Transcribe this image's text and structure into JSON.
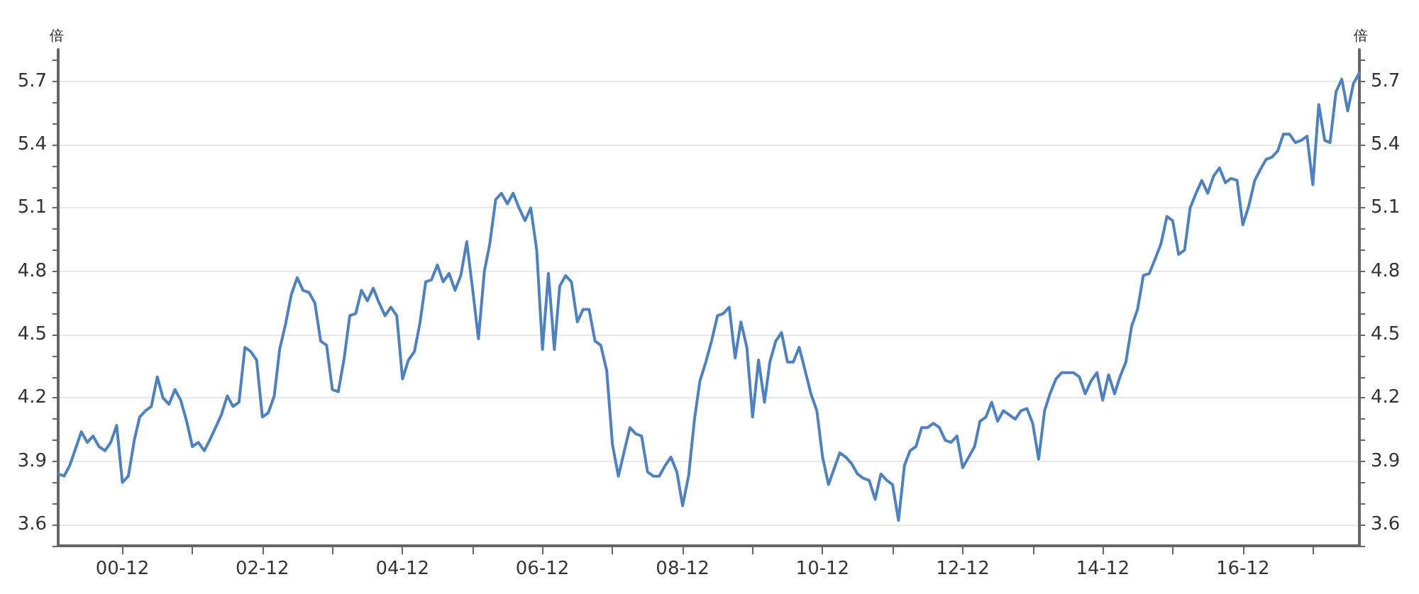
{
  "chart_data": {
    "type": "line",
    "ylabel": "倍",
    "y2label": "倍",
    "x": [
      "2000-01",
      "2000-02",
      "2000-03",
      "2000-05",
      "2000-06",
      "2000-07",
      "2000-08",
      "2000-09",
      "2000-10",
      "2000-11",
      "2000-12",
      "2001-01",
      "2001-02",
      "2001-03",
      "2001-04",
      "2001-05",
      "2001-06",
      "2001-07",
      "2001-08",
      "2001-09",
      "2001-10",
      "2001-11",
      "2001-12",
      "2002-01",
      "2002-02",
      "2002-03",
      "2002-04",
      "2002-05",
      "2002-06",
      "2002-07",
      "2002-08",
      "2002-09",
      "2002-10",
      "2002-11",
      "2002-12",
      "2003-01",
      "2003-02",
      "2003-03",
      "2003-04",
      "2003-05",
      "2003-06",
      "2003-07",
      "2003-08",
      "2003-09",
      "2003-10",
      "2003-11",
      "2003-12",
      "2004-01",
      "2004-02",
      "2004-03",
      "2004-04",
      "2004-05",
      "2004-06",
      "2004-07",
      "2004-08",
      "2004-09",
      "2004-10",
      "2004-11",
      "2004-12",
      "2005-01",
      "2005-02",
      "2005-03",
      "2005-04",
      "2005-05",
      "2005-06",
      "2005-07",
      "2005-08",
      "2005-09",
      "2005-10",
      "2005-11",
      "2005-12",
      "2006-01",
      "2006-02",
      "2006-03",
      "2006-04",
      "2006-05",
      "2006-06",
      "2006-07",
      "2006-08",
      "2006-09",
      "2006-10",
      "2006-11",
      "2006-12",
      "2007-01",
      "2007-02",
      "2007-03",
      "2007-04",
      "2007-05",
      "2007-06",
      "2007-07",
      "2007-08",
      "2007-09",
      "2007-10",
      "2007-11",
      "2007-12",
      "2008-01",
      "2008-02",
      "2008-03",
      "2008-04",
      "2008-05",
      "2008-06",
      "2008-07",
      "2008-08",
      "2008-09",
      "2008-10",
      "2008-11",
      "2008-12",
      "2009-01",
      "2009-02",
      "2009-03",
      "2009-04",
      "2009-05",
      "2009-06",
      "2009-07",
      "2009-08",
      "2009-09",
      "2009-10",
      "2009-11",
      "2009-12",
      "2010-01",
      "2010-02",
      "2010-03",
      "2010-04",
      "2010-05",
      "2010-06",
      "2010-07",
      "2010-08",
      "2010-09",
      "2010-10",
      "2010-11",
      "2010-12",
      "2011-01",
      "2011-02",
      "2011-03",
      "2011-04",
      "2011-05",
      "2011-06",
      "2011-07",
      "2011-08",
      "2011-09",
      "2011-10",
      "2011-11",
      "2011-12",
      "2012-01",
      "2012-02",
      "2012-03",
      "2012-04",
      "2012-05",
      "2012-06",
      "2012-07",
      "2012-08",
      "2012-09",
      "2012-10",
      "2012-11",
      "2012-12",
      "2013-01",
      "2013-02",
      "2013-03",
      "2013-04",
      "2013-05",
      "2013-06",
      "2013-07",
      "2013-08",
      "2013-09",
      "2013-10",
      "2013-11",
      "2013-12",
      "2014-01",
      "2014-02",
      "2014-03",
      "2014-04",
      "2014-05",
      "2014-06",
      "2014-07",
      "2014-08",
      "2014-09",
      "2014-10",
      "2014-11",
      "2014-12",
      "2015-01",
      "2015-02",
      "2015-03",
      "2015-04",
      "2015-05",
      "2015-06",
      "2015-07",
      "2015-08",
      "2015-09",
      "2015-10",
      "2015-11",
      "2015-12",
      "2016-01",
      "2016-02",
      "2016-03",
      "2016-04",
      "2016-05",
      "2016-06",
      "2016-07",
      "2016-08",
      "2016-09",
      "2016-10",
      "2016-11",
      "2016-12",
      "2017-01",
      "2017-02",
      "2017-03",
      "2017-04",
      "2017-05",
      "2017-06",
      "2017-07",
      "2017-08",
      "2017-09",
      "2017-10",
      "2017-11",
      "2017-12",
      "2018-01",
      "2018-02",
      "2018-03",
      "2018-04",
      "2018-05",
      "2018-06",
      "2018-07",
      "2018-08"
    ],
    "series": [
      {
        "color": "#4f81bd",
        "values": [
          3.84,
          3.83,
          3.88,
          4.04,
          3.99,
          4.02,
          3.97,
          3.95,
          3.99,
          4.07,
          3.8,
          3.83,
          4.0,
          4.11,
          4.14,
          4.16,
          4.3,
          4.2,
          4.17,
          4.24,
          4.19,
          4.09,
          3.97,
          3.99,
          3.95,
          4.0,
          4.06,
          4.12,
          4.21,
          4.16,
          4.18,
          4.44,
          4.42,
          4.38,
          4.11,
          4.13,
          4.21,
          4.43,
          4.55,
          4.69,
          4.77,
          4.71,
          4.7,
          4.65,
          4.47,
          4.45,
          4.24,
          4.23,
          4.39,
          4.59,
          4.6,
          4.71,
          4.66,
          4.72,
          4.65,
          4.59,
          4.63,
          4.59,
          4.29,
          4.38,
          4.42,
          4.55,
          4.75,
          4.76,
          4.83,
          4.75,
          4.79,
          4.71,
          4.78,
          4.94,
          4.72,
          4.48,
          4.8,
          4.93,
          5.14,
          5.17,
          5.12,
          5.17,
          5.1,
          5.04,
          5.1,
          4.9,
          4.43,
          4.79,
          4.43,
          4.73,
          4.78,
          4.75,
          4.56,
          4.62,
          4.62,
          4.47,
          4.45,
          4.33,
          3.98,
          3.83,
          3.95,
          4.06,
          4.03,
          4.02,
          3.85,
          3.83,
          3.83,
          3.88,
          3.92,
          3.85,
          3.69,
          3.83,
          4.1,
          4.28,
          4.37,
          4.47,
          4.59,
          4.6,
          4.63,
          4.39,
          4.56,
          4.44,
          4.11,
          4.38,
          4.18,
          4.37,
          4.47,
          4.51,
          4.37,
          4.37,
          4.44,
          4.33,
          4.22,
          4.14,
          3.92,
          3.79,
          3.87,
          3.94,
          3.92,
          3.89,
          3.84,
          3.82,
          3.81,
          3.72,
          3.84,
          3.81,
          3.79,
          3.62,
          3.88,
          3.95,
          3.97,
          4.06,
          4.06,
          4.08,
          4.06,
          4.0,
          3.99,
          4.02,
          3.87,
          3.92,
          3.97,
          4.09,
          4.11,
          4.18,
          4.09,
          4.14,
          4.12,
          4.1,
          4.14,
          4.15,
          4.08,
          3.91,
          4.14,
          4.22,
          4.29,
          4.32,
          4.32,
          4.32,
          4.3,
          4.22,
          4.28,
          4.32,
          4.19,
          4.31,
          4.22,
          4.3,
          4.37,
          4.54,
          4.62,
          4.78,
          4.79,
          4.86,
          4.93,
          5.06,
          5.04,
          4.88,
          4.9,
          5.1,
          5.17,
          5.23,
          5.17,
          5.25,
          5.29,
          5.22,
          5.24,
          5.23,
          5.02,
          5.11,
          5.23,
          5.28,
          5.33,
          5.34,
          5.37,
          5.45,
          5.45,
          5.41,
          5.42,
          5.44,
          5.21,
          5.59,
          5.42,
          5.41,
          5.65,
          5.71,
          5.56,
          5.69,
          5.74
        ]
      }
    ],
    "xlim": [
      "2000-01",
      "2018-08"
    ],
    "xticks": [
      {
        "value": "2000-12",
        "label": "00-12"
      },
      {
        "value": "2001-12",
        "label": null
      },
      {
        "value": "2002-12",
        "label": "02-12"
      },
      {
        "value": "2003-12",
        "label": null
      },
      {
        "value": "2004-12",
        "label": "04-12"
      },
      {
        "value": "2005-12",
        "label": null
      },
      {
        "value": "2006-12",
        "label": "06-12"
      },
      {
        "value": "2007-12",
        "label": null
      },
      {
        "value": "2008-12",
        "label": "08-12"
      },
      {
        "value": "2009-12",
        "label": null
      },
      {
        "value": "2010-12",
        "label": "10-12"
      },
      {
        "value": "2011-12",
        "label": null
      },
      {
        "value": "2012-12",
        "label": "12-12"
      },
      {
        "value": "2013-12",
        "label": null
      },
      {
        "value": "2014-12",
        "label": "14-12"
      },
      {
        "value": "2015-12",
        "label": null
      },
      {
        "value": "2016-12",
        "label": "16-12"
      },
      {
        "value": "2017-12",
        "label": null
      }
    ],
    "ylim": [
      3.5,
      5.85
    ],
    "yticks": [
      {
        "value": 3.5,
        "label": null
      },
      3.6,
      {
        "value": 3.7,
        "label": null
      },
      {
        "value": 3.8,
        "label": null
      },
      3.9,
      {
        "value": 4.0,
        "label": null
      },
      {
        "value": 4.1,
        "label": null
      },
      4.2,
      {
        "value": 4.3,
        "label": null
      },
      {
        "value": 4.4,
        "label": null
      },
      4.5,
      {
        "value": 4.6,
        "label": null
      },
      {
        "value": 4.7,
        "label": null
      },
      4.8,
      {
        "value": 4.9,
        "label": null
      },
      {
        "value": 5.0,
        "label": null
      },
      5.1,
      {
        "value": 5.2,
        "label": null
      },
      {
        "value": 5.3,
        "label": null
      },
      5.4,
      {
        "value": 5.5,
        "label": null
      },
      {
        "value": 5.6,
        "label": null
      },
      5.7,
      {
        "value": 5.8,
        "label": null
      }
    ],
    "y2lim": [
      3.5,
      5.85
    ],
    "y2ticks": [
      {
        "value": 3.5,
        "label": null
      },
      3.6,
      {
        "value": 3.7,
        "label": null
      },
      {
        "value": 3.8,
        "label": null
      },
      3.9,
      {
        "value": 4.0,
        "label": null
      },
      {
        "value": 4.1,
        "label": null
      },
      4.2,
      {
        "value": 4.3,
        "label": null
      },
      {
        "value": 4.4,
        "label": null
      },
      4.5,
      {
        "value": 4.6,
        "label": null
      },
      {
        "value": 4.7,
        "label": null
      },
      4.8,
      {
        "value": 4.9,
        "label": null
      },
      {
        "value": 5.0,
        "label": null
      },
      5.1,
      {
        "value": 5.2,
        "label": null
      },
      {
        "value": 5.3,
        "label": null
      },
      5.4,
      {
        "value": 5.5,
        "label": null
      },
      {
        "value": 5.6,
        "label": null
      },
      5.7,
      {
        "value": 5.8,
        "label": null
      }
    ],
    "grid": "y",
    "marker": "none",
    "line_style": "solid"
  }
}
